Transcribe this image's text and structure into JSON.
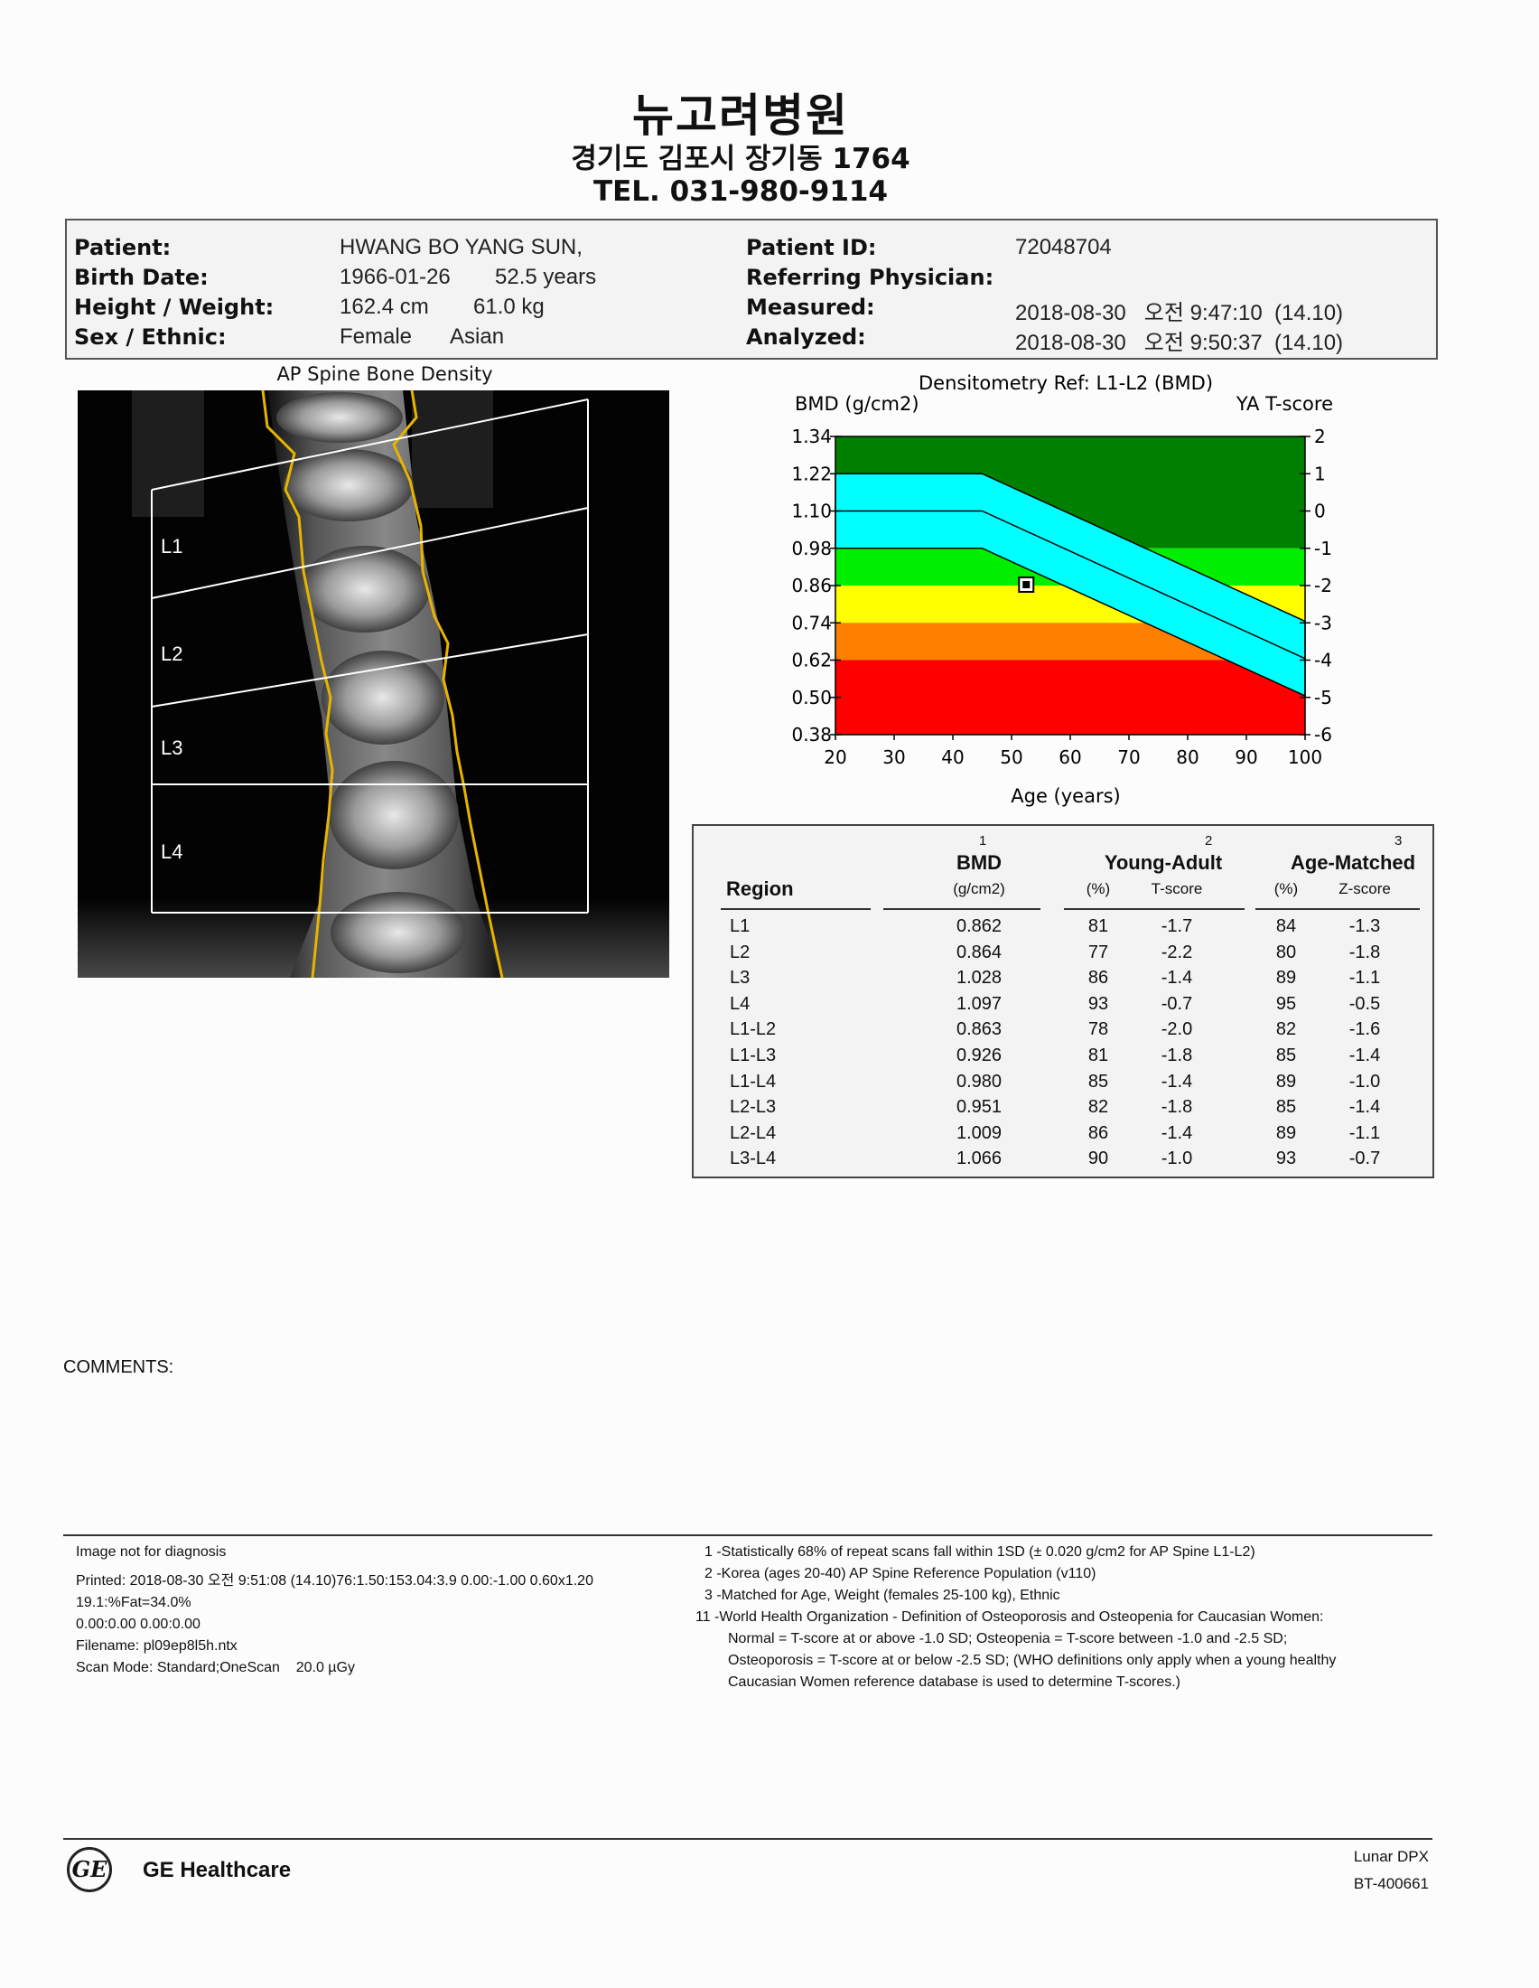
{
  "header": {
    "hospital_name": "뉴고려병원",
    "address": "경기도 김포시 장기동 1764",
    "tel": "TEL. 031-980-9114"
  },
  "patient": {
    "patient_label": "Patient:",
    "patient_value": "HWANG BO YANG SUN,",
    "birth_label": "Birth Date:",
    "birth_value": "1966-01-26",
    "age_value": "52.5 years",
    "hw_label": "Height / Weight:",
    "height_value": "162.4 cm",
    "weight_value": "61.0 kg",
    "sex_label": "Sex / Ethnic:",
    "sex_value": "Female",
    "ethnic_value": "Asian",
    "id_label": "Patient ID:",
    "id_value": "72048704",
    "ref_label": "Referring Physician:",
    "ref_value": "",
    "measured_label": "Measured:",
    "measured_value": "2018-08-30   오전 9:47:10  (14.10)",
    "analyzed_label": "Analyzed:",
    "analyzed_value": "2018-08-30   오전 9:50:37  (14.10)"
  },
  "spine": {
    "title": "AP Spine Bone Density",
    "labels": [
      "L1",
      "L2",
      "L3",
      "L4"
    ]
  },
  "chart_data": {
    "type": "line",
    "title": "Densitometry Ref: L1-L2 (BMD)",
    "ylabel": "BMD (g/cm2)",
    "y2label": "YA T-score",
    "xlabel": "Age (years)",
    "x_ticks": [
      20,
      30,
      40,
      50,
      60,
      70,
      80,
      90,
      100
    ],
    "y_ticks": [
      "1.34",
      "1.22",
      "1.10",
      "0.98",
      "0.86",
      "0.74",
      "0.62",
      "0.50",
      "0.38"
    ],
    "y2_ticks": [
      "2",
      "1",
      "0",
      "-1",
      "-2",
      "-3",
      "-4",
      "-5",
      "-6"
    ],
    "xlim": [
      20,
      100
    ],
    "ylim": [
      0.38,
      1.34
    ],
    "bands": [
      {
        "from": 0.98,
        "to": 1.34,
        "color": "#008000"
      },
      {
        "from": 0.86,
        "to": 0.98,
        "color": "#00ee00"
      },
      {
        "from": 0.74,
        "to": 0.86,
        "color": "#ffff00"
      },
      {
        "from": 0.62,
        "to": 0.74,
        "color": "#ff8000"
      },
      {
        "from": 0.38,
        "to": 0.62,
        "color": "#ff0000"
      }
    ],
    "reference_upper": {
      "x": [
        20,
        45,
        100
      ],
      "y": [
        1.22,
        1.22,
        0.745
      ]
    },
    "reference_mean": {
      "x": [
        20,
        45,
        100
      ],
      "y": [
        1.1,
        1.1,
        0.625
      ]
    },
    "reference_lower": {
      "x": [
        20,
        45,
        100
      ],
      "y": [
        0.98,
        0.98,
        0.505
      ]
    },
    "band_color": "#00ffff",
    "patient_point": {
      "x": 52.5,
      "y": 0.863
    }
  },
  "table": {
    "region_header": "Region",
    "bmd_header": "BMD",
    "bmd_sup": "1",
    "bmd_unit": "(g/cm2)",
    "ya_header": "Young-Adult",
    "ya_sup": "2",
    "ya_pct": "(%)",
    "ya_t": "T-score",
    "am_header": "Age-Matched",
    "am_sup": "3",
    "am_pct": "(%)",
    "am_z": "Z-score",
    "rows": [
      {
        "region": "L1",
        "bmd": "0.862",
        "ya_pct": "81",
        "t": "-1.7",
        "am_pct": "84",
        "z": "-1.3"
      },
      {
        "region": "L2",
        "bmd": "0.864",
        "ya_pct": "77",
        "t": "-2.2",
        "am_pct": "80",
        "z": "-1.8"
      },
      {
        "region": "L3",
        "bmd": "1.028",
        "ya_pct": "86",
        "t": "-1.4",
        "am_pct": "89",
        "z": "-1.1"
      },
      {
        "region": "L4",
        "bmd": "1.097",
        "ya_pct": "93",
        "t": "-0.7",
        "am_pct": "95",
        "z": "-0.5"
      },
      {
        "region": "L1-L2",
        "bmd": "0.863",
        "ya_pct": "78",
        "t": "-2.0",
        "am_pct": "82",
        "z": "-1.6"
      },
      {
        "region": "L1-L3",
        "bmd": "0.926",
        "ya_pct": "81",
        "t": "-1.8",
        "am_pct": "85",
        "z": "-1.4"
      },
      {
        "region": "L1-L4",
        "bmd": "0.980",
        "ya_pct": "85",
        "t": "-1.4",
        "am_pct": "89",
        "z": "-1.0"
      },
      {
        "region": "L2-L3",
        "bmd": "0.951",
        "ya_pct": "82",
        "t": "-1.8",
        "am_pct": "85",
        "z": "-1.4"
      },
      {
        "region": "L2-L4",
        "bmd": "1.009",
        "ya_pct": "86",
        "t": "-1.4",
        "am_pct": "89",
        "z": "-1.1"
      },
      {
        "region": "L3-L4",
        "bmd": "1.066",
        "ya_pct": "90",
        "t": "-1.0",
        "am_pct": "93",
        "z": "-0.7"
      }
    ]
  },
  "comments_label": "COMMENTS:",
  "footer_left": {
    "line1": "Image not for diagnosis",
    "line2": "Printed: 2018-08-30 오전 9:51:08 (14.10)76:1.50:153.04:3.9 0.00:-1.00 0.60x1.20",
    "line3": "19.1:%Fat=34.0%",
    "line4": "0.00:0.00 0.00:0.00",
    "line5": "Filename: pl09ep8l5h.ntx",
    "line6": "Scan Mode: Standard;OneScan    20.0 µGy"
  },
  "footnotes": {
    "n1": "1 -Statistically 68% of repeat scans fall within 1SD (± 0.020 g/cm2 for AP Spine L1-L2)",
    "n2": "2 -Korea (ages 20-40) AP Spine Reference Population (v110)",
    "n3": "3 -Matched for Age, Weight (females 25-100 kg), Ethnic",
    "n11a": "11 -World Health Organization - Definition of Osteoporosis and Osteopenia for Caucasian Women:",
    "n11b": "Normal = T-score at or above -1.0 SD; Osteopenia = T-score between -1.0 and -2.5 SD;",
    "n11c": "Osteoporosis = T-score at or below -2.5 SD; (WHO definitions only apply when a young healthy",
    "n11d": "Caucasian Women reference database is used to determine T-scores.)"
  },
  "brand": {
    "logo_text": "GE",
    "name": "GE Healthcare",
    "device": "Lunar DPX",
    "serial": "BT-400661"
  }
}
